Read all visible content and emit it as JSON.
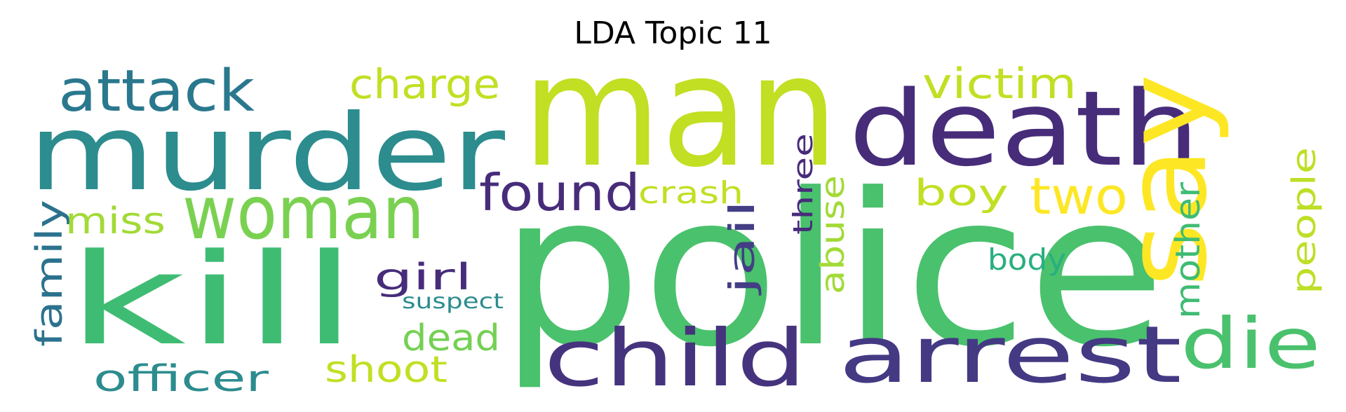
{
  "title": "LDA Topic 11",
  "wordcloud": {
    "palette": "viridis",
    "words": [
      {
        "text": "man",
        "color": "#c2df23"
      },
      {
        "text": "police",
        "color": "#4ac16d"
      },
      {
        "text": "murder",
        "color": "#2c8c8e"
      },
      {
        "text": "death",
        "color": "#472c7a"
      },
      {
        "text": "kill",
        "color": "#3fbc73"
      },
      {
        "text": "say",
        "color": "#fde725"
      },
      {
        "text": "child",
        "color": "#46337e"
      },
      {
        "text": "arrest",
        "color": "#443983"
      },
      {
        "text": "woman",
        "color": "#7ad151"
      },
      {
        "text": "die",
        "color": "#4ac16d"
      },
      {
        "text": "attack",
        "color": "#2a788e"
      },
      {
        "text": "found",
        "color": "#472c7a"
      },
      {
        "text": "two",
        "color": "#fde725"
      },
      {
        "text": "victim",
        "color": "#c2df23"
      },
      {
        "text": "charge",
        "color": "#c2df23"
      },
      {
        "text": "family",
        "color": "#2c728e"
      },
      {
        "text": "officer",
        "color": "#2c8c8e"
      },
      {
        "text": "mother",
        "color": "#3fbc73"
      },
      {
        "text": "people",
        "color": "#bddf26"
      },
      {
        "text": "jail",
        "color": "#433e85"
      },
      {
        "text": "abuse",
        "color": "#a2da37"
      },
      {
        "text": "three",
        "color": "#472c7a"
      },
      {
        "text": "shoot",
        "color": "#c2df23"
      },
      {
        "text": "dead",
        "color": "#75d054"
      },
      {
        "text": "girl",
        "color": "#472c7a"
      },
      {
        "text": "boy",
        "color": "#c2df23"
      },
      {
        "text": "crash",
        "color": "#c2df23"
      },
      {
        "text": "miss",
        "color": "#a2da37"
      },
      {
        "text": "body",
        "color": "#29af7f"
      },
      {
        "text": "suspect",
        "color": "#2c8c8e"
      }
    ]
  }
}
